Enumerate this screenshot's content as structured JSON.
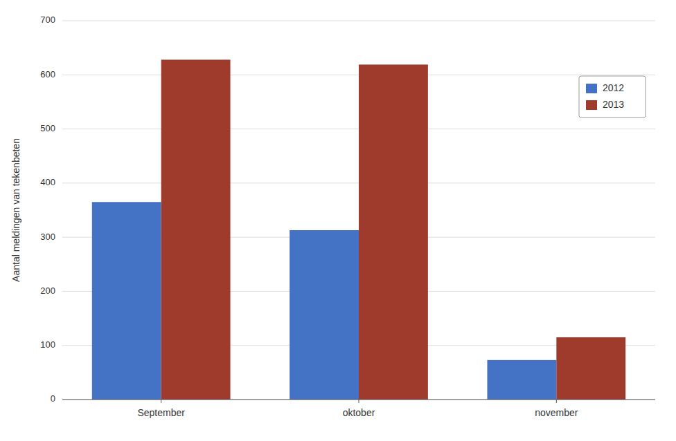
{
  "chart_data": {
    "type": "bar",
    "categories": [
      "September",
      "oktober",
      "november"
    ],
    "series": [
      {
        "name": "2012",
        "color": "#4472C4",
        "values": [
          365,
          313,
          73
        ]
      },
      {
        "name": "2013",
        "color": "#9E3B2C",
        "values": [
          628,
          619,
          115
        ]
      }
    ],
    "ylabel": "Aantal meldingen van tekenbeten",
    "ylim": [
      0,
      700
    ],
    "yticks": [
      0,
      100,
      200,
      300,
      400,
      500,
      600,
      700
    ],
    "grid": true,
    "legend": "upper right"
  }
}
